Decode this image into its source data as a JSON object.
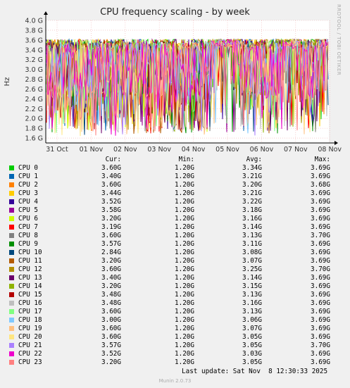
{
  "chart_data": {
    "type": "line",
    "title": "CPU frequency scaling - by week",
    "ylabel": "Hz",
    "ylim": [
      1.5,
      4.0
    ],
    "yticks": [
      "1.6 G",
      "1.8 G",
      "2.0 G",
      "2.2 G",
      "2.4 G",
      "2.6 G",
      "2.8 G",
      "3.0 G",
      "3.2 G",
      "3.4 G",
      "3.6 G",
      "3.8 G",
      "4.0 G"
    ],
    "xticks": [
      "31 Oct",
      "01 Nov",
      "02 Nov",
      "03 Nov",
      "04 Nov",
      "05 Nov",
      "06 Nov",
      "07 Nov",
      "08 Nov"
    ],
    "grid": true,
    "series": [
      {
        "name": "CPU 0",
        "color": "#00cc00",
        "cur": "3.60G",
        "min": "1.20G",
        "avg": "3.34G",
        "max": "3.69G"
      },
      {
        "name": "CPU 1",
        "color": "#0066b3",
        "cur": "3.40G",
        "min": "1.20G",
        "avg": "3.21G",
        "max": "3.69G"
      },
      {
        "name": "CPU 2",
        "color": "#ff8000",
        "cur": "3.60G",
        "min": "1.20G",
        "avg": "3.20G",
        "max": "3.68G"
      },
      {
        "name": "CPU 3",
        "color": "#ffcc00",
        "cur": "3.44G",
        "min": "1.20G",
        "avg": "3.21G",
        "max": "3.69G"
      },
      {
        "name": "CPU 4",
        "color": "#330099",
        "cur": "3.52G",
        "min": "1.20G",
        "avg": "3.22G",
        "max": "3.69G"
      },
      {
        "name": "CPU 5",
        "color": "#990099",
        "cur": "3.58G",
        "min": "1.20G",
        "avg": "3.18G",
        "max": "3.69G"
      },
      {
        "name": "CPU 6",
        "color": "#ccff00",
        "cur": "3.20G",
        "min": "1.20G",
        "avg": "3.16G",
        "max": "3.69G"
      },
      {
        "name": "CPU 7",
        "color": "#ff0000",
        "cur": "3.19G",
        "min": "1.20G",
        "avg": "3.14G",
        "max": "3.69G"
      },
      {
        "name": "CPU 8",
        "color": "#808080",
        "cur": "3.60G",
        "min": "1.20G",
        "avg": "3.13G",
        "max": "3.70G"
      },
      {
        "name": "CPU 9",
        "color": "#008f00",
        "cur": "3.57G",
        "min": "1.20G",
        "avg": "3.11G",
        "max": "3.69G"
      },
      {
        "name": "CPU 10",
        "color": "#00487d",
        "cur": "2.84G",
        "min": "1.20G",
        "avg": "3.08G",
        "max": "3.69G"
      },
      {
        "name": "CPU 11",
        "color": "#b35a00",
        "cur": "3.20G",
        "min": "1.20G",
        "avg": "3.07G",
        "max": "3.69G"
      },
      {
        "name": "CPU 12",
        "color": "#b38f00",
        "cur": "3.60G",
        "min": "1.20G",
        "avg": "3.25G",
        "max": "3.70G"
      },
      {
        "name": "CPU 13",
        "color": "#6b006b",
        "cur": "3.40G",
        "min": "1.20G",
        "avg": "3.14G",
        "max": "3.69G"
      },
      {
        "name": "CPU 14",
        "color": "#8fb300",
        "cur": "3.20G",
        "min": "1.20G",
        "avg": "3.15G",
        "max": "3.69G"
      },
      {
        "name": "CPU 15",
        "color": "#b30000",
        "cur": "3.48G",
        "min": "1.20G",
        "avg": "3.13G",
        "max": "3.69G"
      },
      {
        "name": "CPU 16",
        "color": "#bebebe",
        "cur": "3.48G",
        "min": "1.20G",
        "avg": "3.16G",
        "max": "3.69G"
      },
      {
        "name": "CPU 17",
        "color": "#80ff80",
        "cur": "3.60G",
        "min": "1.20G",
        "avg": "3.13G",
        "max": "3.69G"
      },
      {
        "name": "CPU 18",
        "color": "#80c9ff",
        "cur": "3.00G",
        "min": "1.20G",
        "avg": "3.06G",
        "max": "3.69G"
      },
      {
        "name": "CPU 19",
        "color": "#ffc080",
        "cur": "3.60G",
        "min": "1.20G",
        "avg": "3.07G",
        "max": "3.69G"
      },
      {
        "name": "CPU 20",
        "color": "#ffe680",
        "cur": "3.60G",
        "min": "1.20G",
        "avg": "3.05G",
        "max": "3.69G"
      },
      {
        "name": "CPU 21",
        "color": "#aa80ff",
        "cur": "3.57G",
        "min": "1.20G",
        "avg": "3.05G",
        "max": "3.70G"
      },
      {
        "name": "CPU 22",
        "color": "#ee00cc",
        "cur": "3.52G",
        "min": "1.20G",
        "avg": "3.03G",
        "max": "3.69G"
      },
      {
        "name": "CPU 23",
        "color": "#ff8080",
        "cur": "3.20G",
        "min": "1.20G",
        "avg": "3.05G",
        "max": "3.69G"
      }
    ]
  },
  "side_label": "RRDTOOL / TOBI OETIKER",
  "headers": {
    "cur": "Cur:",
    "min": "Min:",
    "avg": "Avg:",
    "max": "Max:"
  },
  "footer": "Last update: Sat Nov  8 12:30:33 2025",
  "version": "Munin 2.0.73"
}
